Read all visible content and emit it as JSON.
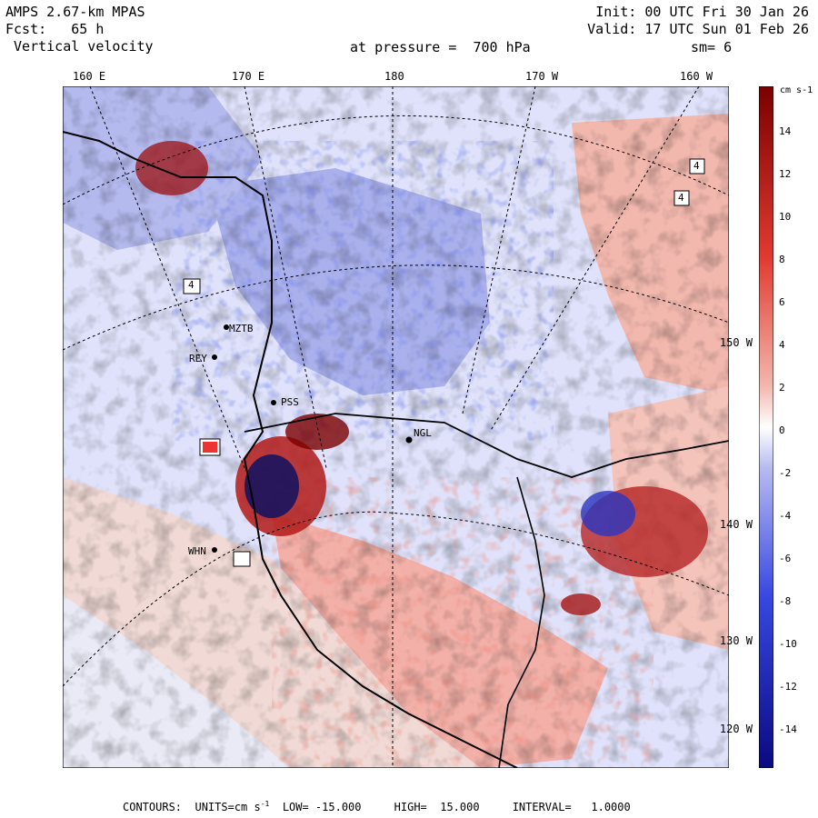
{
  "header": {
    "model": "AMPS 2.67-km MPAS",
    "forecast_label": "Fcst:",
    "forecast_value": "65 h",
    "field": "Vertical velocity",
    "init": "Init: 00 UTC Fri 30 Jan 26",
    "valid": "Valid: 17 UTC Sun 01 Feb 26",
    "level": "at pressure =  700 hPa",
    "smoothing": "sm= 6"
  },
  "longitude_labels": [
    "160 E",
    "170 E",
    "180",
    "170 W",
    "160 W"
  ],
  "latitude_labels": [
    "150 W",
    "140 W",
    "130 W",
    "120 W"
  ],
  "stations": [
    "MZTB",
    "REY",
    "PSS",
    "NGL",
    "WHN"
  ],
  "contour_labels": [
    "4",
    "4",
    "4"
  ],
  "colorbar": {
    "units": "cm s-1",
    "tick_labels": [
      "14",
      "12",
      "10",
      "8",
      "6",
      "4",
      "2",
      "0",
      "-2",
      "-4",
      "-6",
      "-8",
      "-10",
      "-12",
      "-14"
    ],
    "colors": {
      "strong_up": "#7a0000",
      "moderate_up": "#e03a30",
      "weak_up": "#f3b7ad",
      "neutral": "#ffffff",
      "weak_down": "#b6bbf0",
      "moderate_down": "#3747e0",
      "strong_down": "#0a0a80"
    }
  },
  "footer": {
    "contours": "CONTOURS:  UNITS=cm s",
    "units_exp": "-1",
    "low": "LOW= -15.000",
    "high": "HIGH=  15.000",
    "interval": "INTERVAL=   1.0000"
  }
}
